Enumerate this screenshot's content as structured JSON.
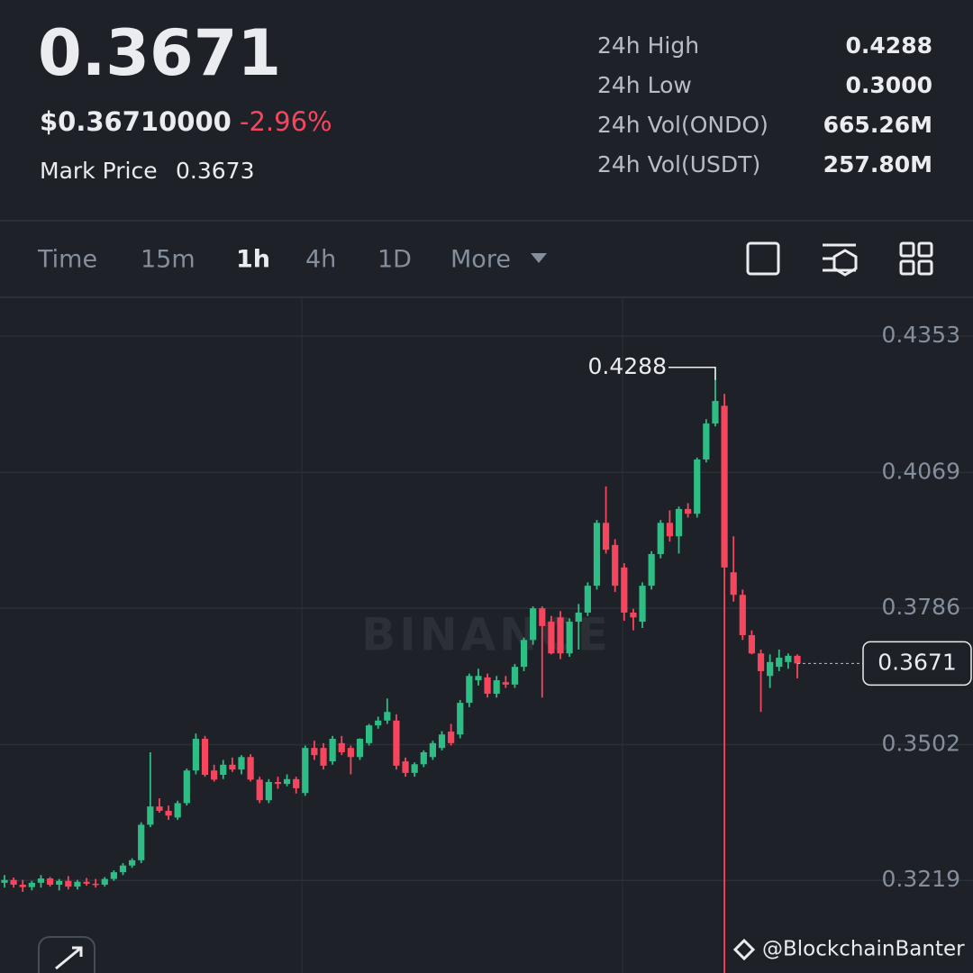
{
  "header": {
    "price": "0.3671",
    "usd_price": "$0.36710000",
    "change": "-2.96%",
    "mark_label": "Mark Price",
    "mark_price": "0.3673"
  },
  "stats": [
    {
      "label": "24h High",
      "value": "0.4288"
    },
    {
      "label": "24h Low",
      "value": "0.3000"
    },
    {
      "label": "24h Vol(ONDO)",
      "value": "665.26M"
    },
    {
      "label": "24h Vol(USDT)",
      "value": "257.80M"
    }
  ],
  "intervals": [
    "Time",
    "15m",
    "1h",
    "4h",
    "1D",
    "More"
  ],
  "selected_interval": 2,
  "watermark": "BINANCE",
  "credit": "@BlockchainBanter",
  "chart_data": {
    "type": "candlestick",
    "up_color": "#2ebd85",
    "down_color": "#f6465d",
    "grid": true,
    "ylim": [
      0.3026,
      0.4434
    ],
    "yticks": [
      0.4353,
      0.4069,
      0.3786,
      0.3502,
      0.3219
    ],
    "open": [
      0.3214,
      0.322,
      0.321,
      0.3205,
      0.3214,
      0.3223,
      0.321,
      0.3218,
      0.3206,
      0.3216,
      0.3212,
      0.321,
      0.3222,
      0.3236,
      0.325,
      0.3261,
      0.3335,
      0.3373,
      0.3364,
      0.335,
      0.338,
      0.3448,
      0.3514,
      0.3448,
      0.3439,
      0.346,
      0.345,
      0.3476,
      0.3429,
      0.3386,
      0.3424,
      0.342,
      0.343,
      0.3401,
      0.3495,
      0.3495,
      0.3467,
      0.3505,
      0.3495,
      0.3476,
      0.3505,
      0.3542,
      0.3552,
      0.3552,
      0.3467,
      0.3443,
      0.3461,
      0.3476,
      0.3495,
      0.3529,
      0.3523,
      0.3589,
      0.3636,
      0.3642,
      0.3608,
      0.3632,
      0.3627,
      0.3664,
      0.372,
      0.3786,
      0.3758,
      0.3767,
      0.3692,
      0.3758,
      0.3777,
      0.3833,
      0.3964,
      0.3918,
      0.3871,
      0.3777,
      0.3758,
      0.3833,
      0.3899,
      0.3964,
      0.3936,
      0.3993,
      0.3983,
      0.4096,
      0.4171,
      0.4208,
      0.3861,
      0.3814,
      0.373,
      0.3692,
      0.3645,
      0.3664,
      0.3674,
      0.3687
    ],
    "high": [
      0.323,
      0.3225,
      0.322,
      0.3218,
      0.323,
      0.3226,
      0.3222,
      0.3228,
      0.322,
      0.3224,
      0.3222,
      0.3226,
      0.324,
      0.3255,
      0.3265,
      0.334,
      0.3486,
      0.339,
      0.3375,
      0.3385,
      0.3452,
      0.3525,
      0.352,
      0.346,
      0.347,
      0.3475,
      0.348,
      0.3482,
      0.3435,
      0.343,
      0.3435,
      0.344,
      0.3435,
      0.35,
      0.351,
      0.3505,
      0.352,
      0.352,
      0.35,
      0.3515,
      0.3545,
      0.356,
      0.3598,
      0.3565,
      0.3475,
      0.3465,
      0.349,
      0.351,
      0.353,
      0.3545,
      0.3595,
      0.365,
      0.366,
      0.365,
      0.3645,
      0.3645,
      0.367,
      0.3725,
      0.379,
      0.379,
      0.377,
      0.378,
      0.3765,
      0.3795,
      0.384,
      0.397,
      0.404,
      0.393,
      0.388,
      0.3785,
      0.384,
      0.3905,
      0.397,
      0.399,
      0.3998,
      0.4005,
      0.41,
      0.418,
      0.4288,
      0.4233,
      0.3936,
      0.3825,
      0.374,
      0.37,
      0.369,
      0.37,
      0.3692,
      0.369
    ],
    "low": [
      0.3204,
      0.3204,
      0.3195,
      0.3198,
      0.3204,
      0.3206,
      0.3198,
      0.32,
      0.32,
      0.3208,
      0.3204,
      0.3206,
      0.3218,
      0.323,
      0.3245,
      0.3255,
      0.333,
      0.336,
      0.3345,
      0.3345,
      0.3375,
      0.344,
      0.3435,
      0.3425,
      0.343,
      0.3445,
      0.344,
      0.3425,
      0.338,
      0.338,
      0.341,
      0.3415,
      0.34,
      0.3395,
      0.347,
      0.345,
      0.346,
      0.348,
      0.344,
      0.347,
      0.35,
      0.3535,
      0.3545,
      0.345,
      0.3435,
      0.3435,
      0.3455,
      0.347,
      0.349,
      0.35,
      0.3515,
      0.358,
      0.3625,
      0.36,
      0.36,
      0.362,
      0.362,
      0.3655,
      0.371,
      0.36,
      0.369,
      0.368,
      0.3685,
      0.37,
      0.377,
      0.3825,
      0.39,
      0.382,
      0.376,
      0.374,
      0.3745,
      0.3825,
      0.389,
      0.3925,
      0.39,
      0.3975,
      0.3975,
      0.409,
      0.4165,
      0.3,
      0.38,
      0.372,
      0.369,
      0.357,
      0.362,
      0.3655,
      0.366,
      0.364
    ],
    "close": [
      0.322,
      0.321,
      0.3205,
      0.3214,
      0.3223,
      0.321,
      0.3218,
      0.3206,
      0.3216,
      0.3212,
      0.321,
      0.3222,
      0.3236,
      0.325,
      0.3261,
      0.3335,
      0.3373,
      0.3364,
      0.3354,
      0.338,
      0.3448,
      0.3514,
      0.3439,
      0.3429,
      0.346,
      0.345,
      0.3476,
      0.3429,
      0.3386,
      0.3424,
      0.342,
      0.343,
      0.3411,
      0.3495,
      0.348,
      0.3458,
      0.3514,
      0.3486,
      0.3476,
      0.3514,
      0.3542,
      0.3552,
      0.357,
      0.3458,
      0.3443,
      0.3461,
      0.3486,
      0.3505,
      0.3523,
      0.3505,
      0.3589,
      0.3645,
      0.3645,
      0.3608,
      0.3636,
      0.3627,
      0.3664,
      0.372,
      0.3786,
      0.3749,
      0.3692,
      0.3692,
      0.3758,
      0.3777,
      0.3833,
      0.3964,
      0.3908,
      0.3833,
      0.3777,
      0.3767,
      0.3833,
      0.3899,
      0.3964,
      0.3936,
      0.3993,
      0.3983,
      0.4096,
      0.4171,
      0.4218,
      0.3871,
      0.3814,
      0.373,
      0.3692,
      0.3655,
      0.3674,
      0.3683,
      0.3687,
      0.3671
    ]
  }
}
